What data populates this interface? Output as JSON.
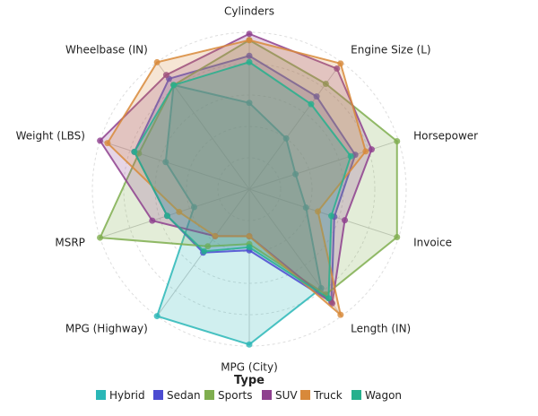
{
  "chart_data": {
    "type": "radar",
    "title": "",
    "axes": [
      "Cylinders",
      "Engine Size (L)",
      "Horsepower",
      "Invoice",
      "Length (IN)",
      "MPG (City)",
      "MPG (Highway)",
      "MSRP",
      "Weight (LBS)",
      "Wheelbase (IN)"
    ],
    "value_scale": "normalized 0-1 (fraction of outer ring)",
    "rings": 5,
    "legend_title": "Type",
    "legend_position": "bottom",
    "series": [
      {
        "name": "Hybrid",
        "color": "#2ab7b7",
        "values": [
          0.55,
          0.4,
          0.31,
          0.38,
          0.78,
          0.99,
          1.0,
          0.37,
          0.56,
          0.82
        ]
      },
      {
        "name": "Sedan",
        "color": "#4b4bd1",
        "values": [
          0.85,
          0.73,
          0.71,
          0.57,
          0.89,
          0.39,
          0.5,
          0.55,
          0.77,
          0.87
        ]
      },
      {
        "name": "Sports",
        "color": "#7fae4f",
        "values": [
          0.95,
          0.83,
          0.99,
          0.99,
          0.83,
          0.35,
          0.45,
          1.0,
          0.74,
          0.82
        ]
      },
      {
        "name": "SUV",
        "color": "#8e3f8e",
        "values": [
          0.99,
          0.95,
          0.82,
          0.64,
          0.9,
          0.3,
          0.37,
          0.65,
          1.0,
          0.9
        ]
      },
      {
        "name": "Truck",
        "color": "#d8893a",
        "values": [
          0.95,
          0.99,
          0.78,
          0.46,
          0.99,
          0.3,
          0.37,
          0.47,
          0.95,
          1.0
        ]
      },
      {
        "name": "Wagon",
        "color": "#26b08d",
        "values": [
          0.81,
          0.67,
          0.68,
          0.55,
          0.86,
          0.37,
          0.49,
          0.55,
          0.77,
          0.82
        ]
      }
    ]
  }
}
